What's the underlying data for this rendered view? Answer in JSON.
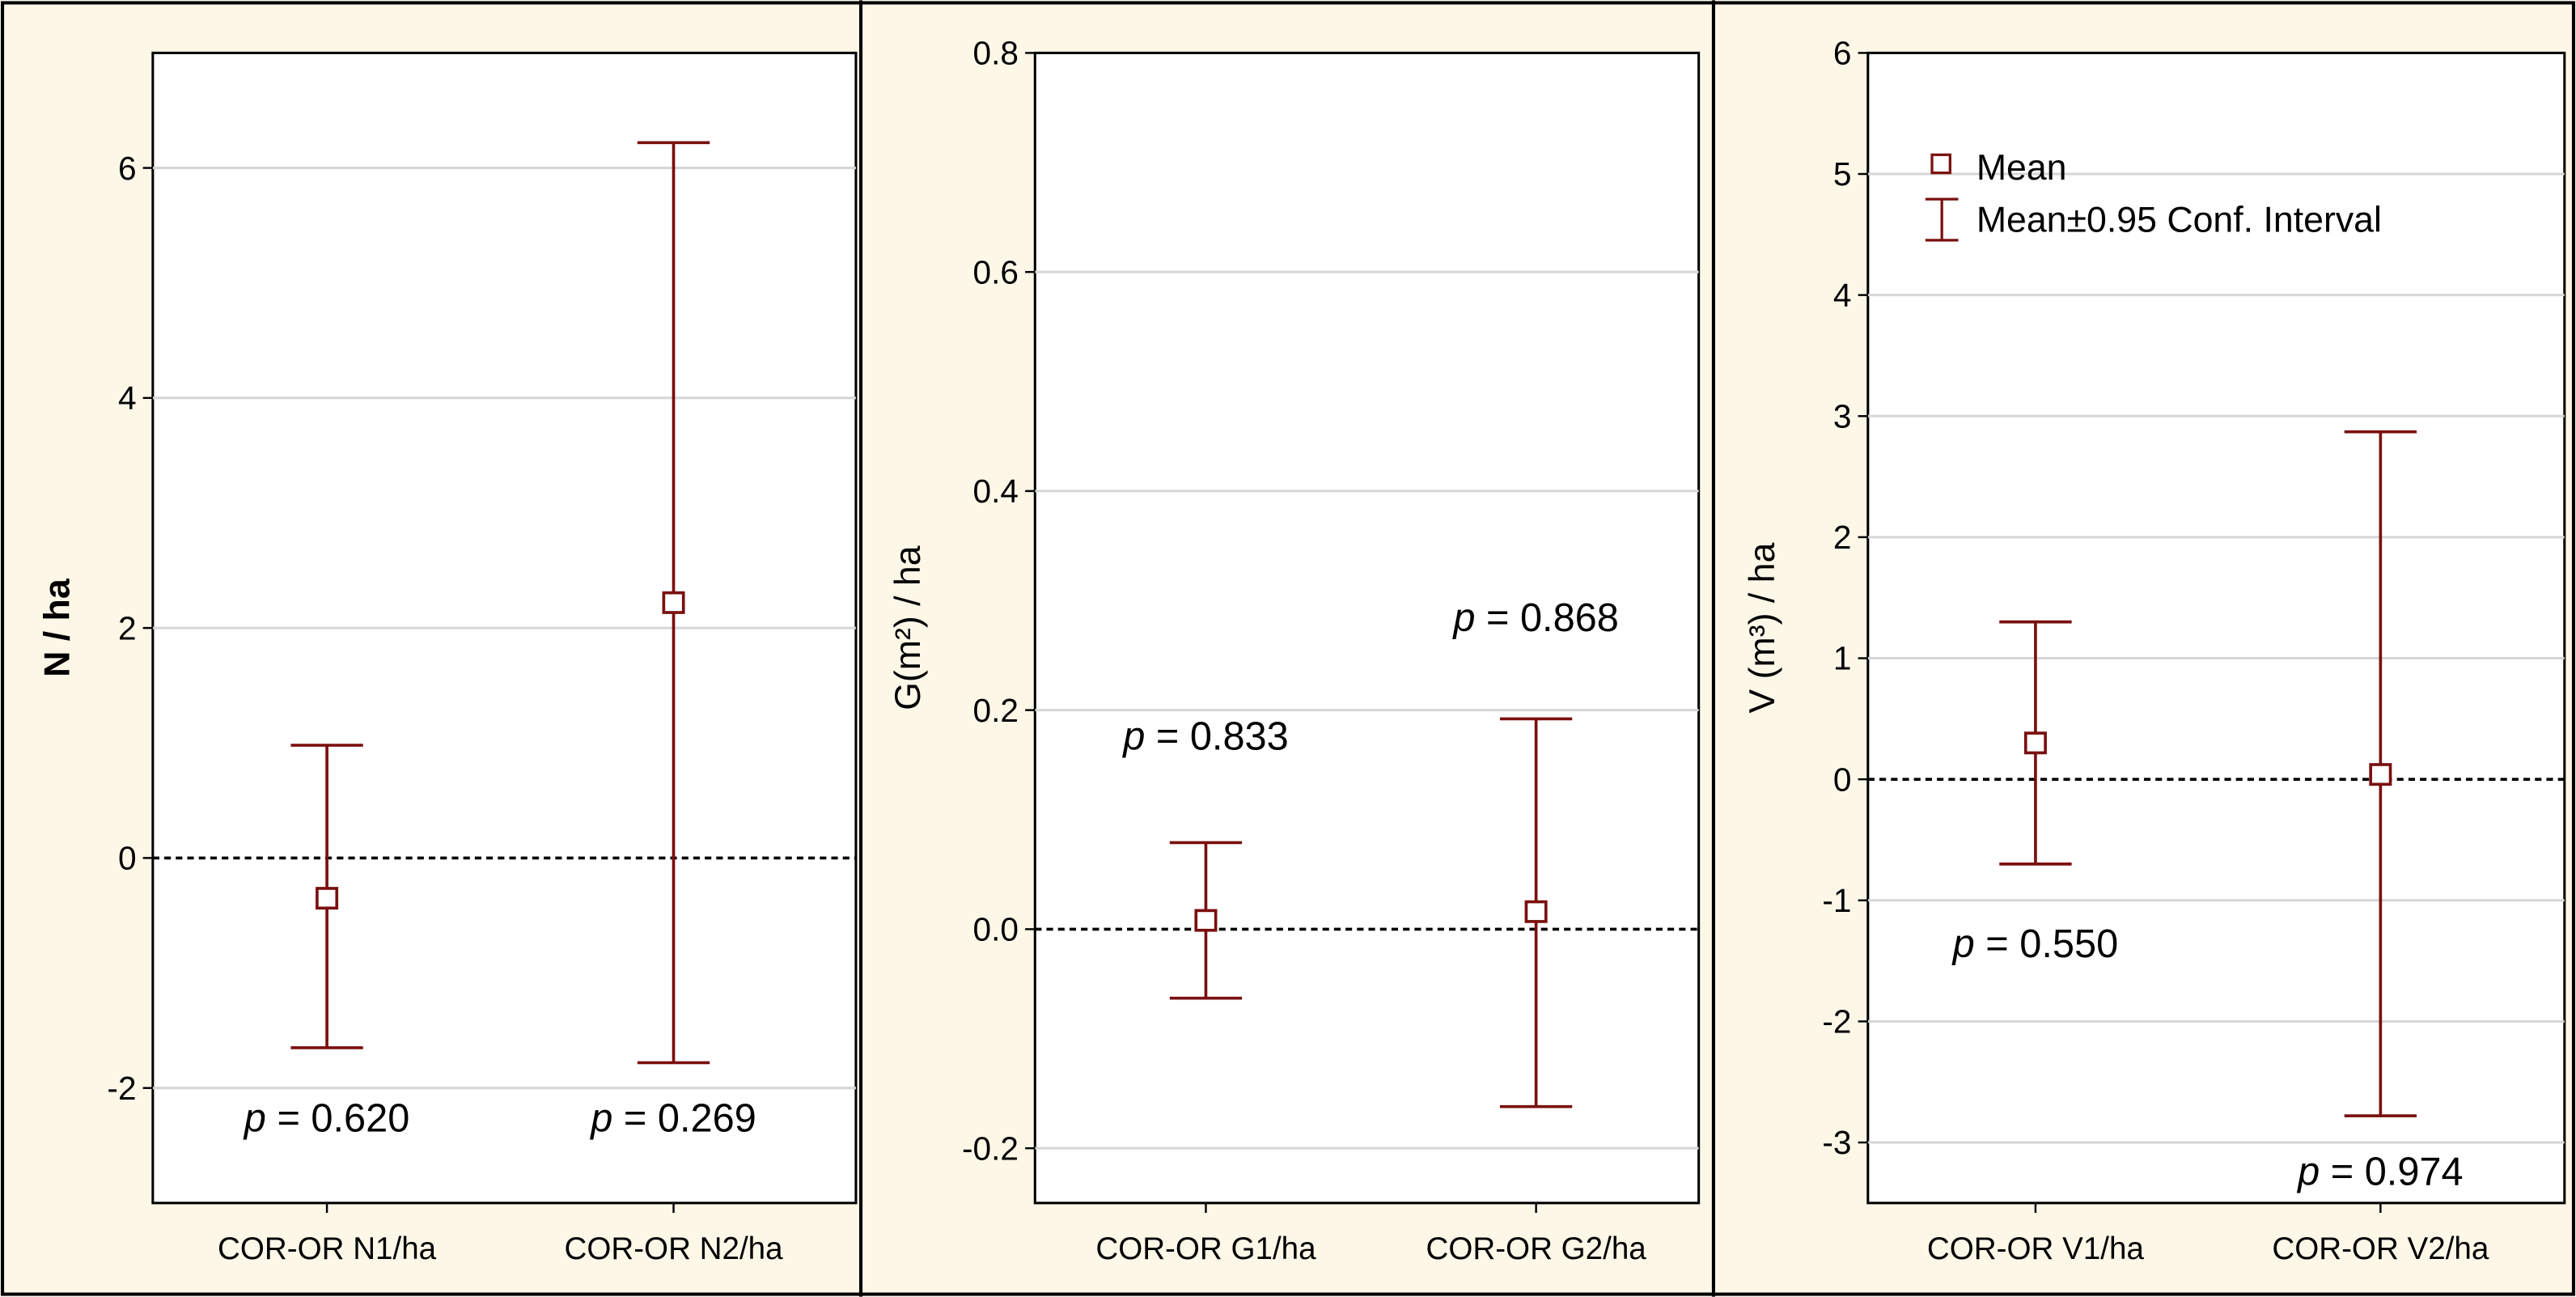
{
  "legend": {
    "mean_label": "Mean",
    "ci_label": "Mean±0.95 Conf. Interval"
  },
  "colors": {
    "series": "#7a0f0f",
    "frame_bg": "#fdf7e8",
    "plot_bg": "#ffffff",
    "grid": "#d6d6d6",
    "axis": "#000000"
  },
  "chart_data": [
    {
      "type": "errorbar",
      "ylabel": "N / ha",
      "ylim": [
        -3,
        7
      ],
      "yticks": [
        -2,
        0,
        2,
        4,
        6
      ],
      "ytick_labels": [
        "-2",
        "0",
        "2",
        "4",
        "6"
      ],
      "categories": [
        "COR-OR N1/ha",
        "COR-OR N2/ha"
      ],
      "mean": [
        -0.35,
        2.22
      ],
      "ci_low": [
        -1.65,
        -1.78
      ],
      "ci_high": [
        0.98,
        6.22
      ],
      "reference_line": 0,
      "annotations": [
        {
          "p_label": "p",
          "value_text": " = 0.620",
          "x": 0,
          "y": -2.38
        },
        {
          "p_label": "p",
          "value_text": " = 0.269",
          "x": 1,
          "y": -2.38
        }
      ]
    },
    {
      "type": "errorbar",
      "ylabel": "G(m²) / ha",
      "ylim": [
        -0.25,
        0.8
      ],
      "yticks": [
        -0.2,
        0.0,
        0.2,
        0.4,
        0.6,
        0.8
      ],
      "ytick_labels": [
        "-0.2",
        "0.0",
        "0.2",
        "0.4",
        "0.6",
        "0.8"
      ],
      "categories": [
        "COR-OR G1/ha",
        "COR-OR G2/ha"
      ],
      "mean": [
        0.008,
        0.016
      ],
      "ci_low": [
        -0.063,
        -0.162
      ],
      "ci_high": [
        0.079,
        0.192
      ],
      "reference_line": 0,
      "annotations": [
        {
          "p_label": "p",
          "value_text": " = 0.833",
          "x": 0,
          "y": 0.164
        },
        {
          "p_label": "p",
          "value_text": " = 0.868",
          "x": 1,
          "y": 0.272
        }
      ]
    },
    {
      "type": "errorbar",
      "ylabel": "V (m³) / ha",
      "ylim": [
        -3.5,
        6
      ],
      "yticks": [
        -3,
        -2,
        -1,
        0,
        1,
        2,
        3,
        4,
        5,
        6
      ],
      "ytick_labels": [
        "-3",
        "-2",
        "-1",
        "0",
        "1",
        "2",
        "3",
        "4",
        "5",
        "6"
      ],
      "categories": [
        "COR-OR V1/ha",
        "COR-OR V2/ha"
      ],
      "mean": [
        0.3,
        0.04
      ],
      "ci_low": [
        -0.7,
        -2.78
      ],
      "ci_high": [
        1.3,
        2.87
      ],
      "reference_line": 0,
      "annotations": [
        {
          "p_label": "p",
          "value_text": " = 0.550",
          "x": 0,
          "y": -1.47
        },
        {
          "p_label": "p",
          "value_text": " = 0.974",
          "x": 1,
          "y": -3.35
        }
      ]
    }
  ]
}
